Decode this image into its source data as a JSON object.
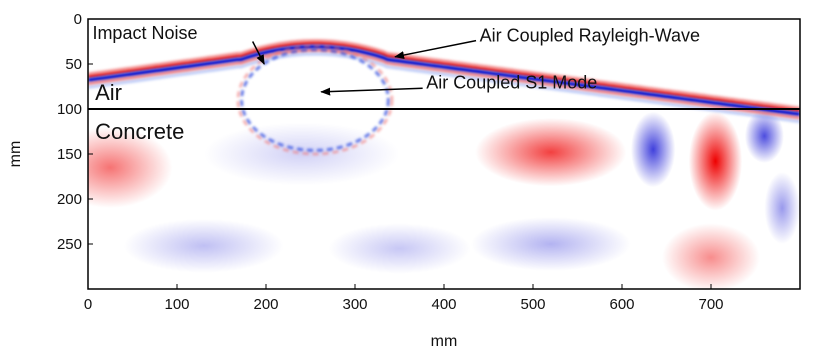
{
  "chart_data": {
    "type": "heatmap",
    "xlabel": "mm",
    "ylabel": "mm",
    "xlim": [
      0,
      800
    ],
    "ylim": [
      0,
      300
    ],
    "y_inverted": true,
    "grid": false,
    "colormap": [
      "#0000d0",
      "#ffffff",
      "#ee0000"
    ],
    "x_ticks": [
      "0",
      "100",
      "200",
      "300",
      "400",
      "500",
      "600",
      "700"
    ],
    "y_ticks": [
      "0",
      "50",
      "100",
      "150",
      "200",
      "250"
    ],
    "interface_depth": 100,
    "regions": [
      {
        "label": "Air",
        "x": 8,
        "y": 90
      },
      {
        "label": "Concrete",
        "x": 8,
        "y": 118
      }
    ],
    "annotations": [
      {
        "text": "Impact Noise",
        "text_x": 5,
        "text_y": 22,
        "arrow_from": [
          185,
          25
        ],
        "arrow_to": [
          198,
          50
        ]
      },
      {
        "text": "Air Coupled Rayleigh-Wave",
        "text_x": 440,
        "text_y": 25,
        "arrow_from": [
          436,
          24
        ],
        "arrow_to": [
          345,
          42
        ]
      },
      {
        "text": "Air Coupled S1 Mode",
        "text_x": 380,
        "text_y": 77,
        "arrow_from": [
          376,
          77
        ],
        "arrow_to": [
          262,
          81
        ]
      }
    ],
    "wavefront": {
      "apex": [
        255,
        28
      ],
      "left_end": [
        0,
        65
      ],
      "right_end": [
        800,
        103
      ],
      "arc_start": 170,
      "arc_end": 335
    },
    "s1_mode": {
      "x_range": [
        175,
        335
      ],
      "rows": [
        62,
        72,
        82,
        92
      ]
    },
    "concrete_field": [
      {
        "x": 25,
        "y": 165,
        "rx": 70,
        "ry": 45,
        "sign": 1,
        "a": 0.55
      },
      {
        "x": 240,
        "y": 150,
        "rx": 110,
        "ry": 35,
        "sign": -1,
        "a": 0.18
      },
      {
        "x": 520,
        "y": 148,
        "rx": 85,
        "ry": 38,
        "sign": 1,
        "a": 0.75
      },
      {
        "x": 635,
        "y": 145,
        "rx": 25,
        "ry": 42,
        "sign": -1,
        "a": 0.75
      },
      {
        "x": 705,
        "y": 158,
        "rx": 30,
        "ry": 55,
        "sign": 1,
        "a": 1.0
      },
      {
        "x": 760,
        "y": 130,
        "rx": 22,
        "ry": 30,
        "sign": -1,
        "a": 0.7
      },
      {
        "x": 700,
        "y": 265,
        "rx": 55,
        "ry": 38,
        "sign": 1,
        "a": 0.45
      },
      {
        "x": 520,
        "y": 250,
        "rx": 90,
        "ry": 30,
        "sign": -1,
        "a": 0.3
      },
      {
        "x": 130,
        "y": 252,
        "rx": 90,
        "ry": 30,
        "sign": -1,
        "a": 0.25
      },
      {
        "x": 350,
        "y": 255,
        "rx": 80,
        "ry": 28,
        "sign": -1,
        "a": 0.22
      },
      {
        "x": 780,
        "y": 210,
        "rx": 20,
        "ry": 40,
        "sign": -1,
        "a": 0.4
      }
    ]
  }
}
